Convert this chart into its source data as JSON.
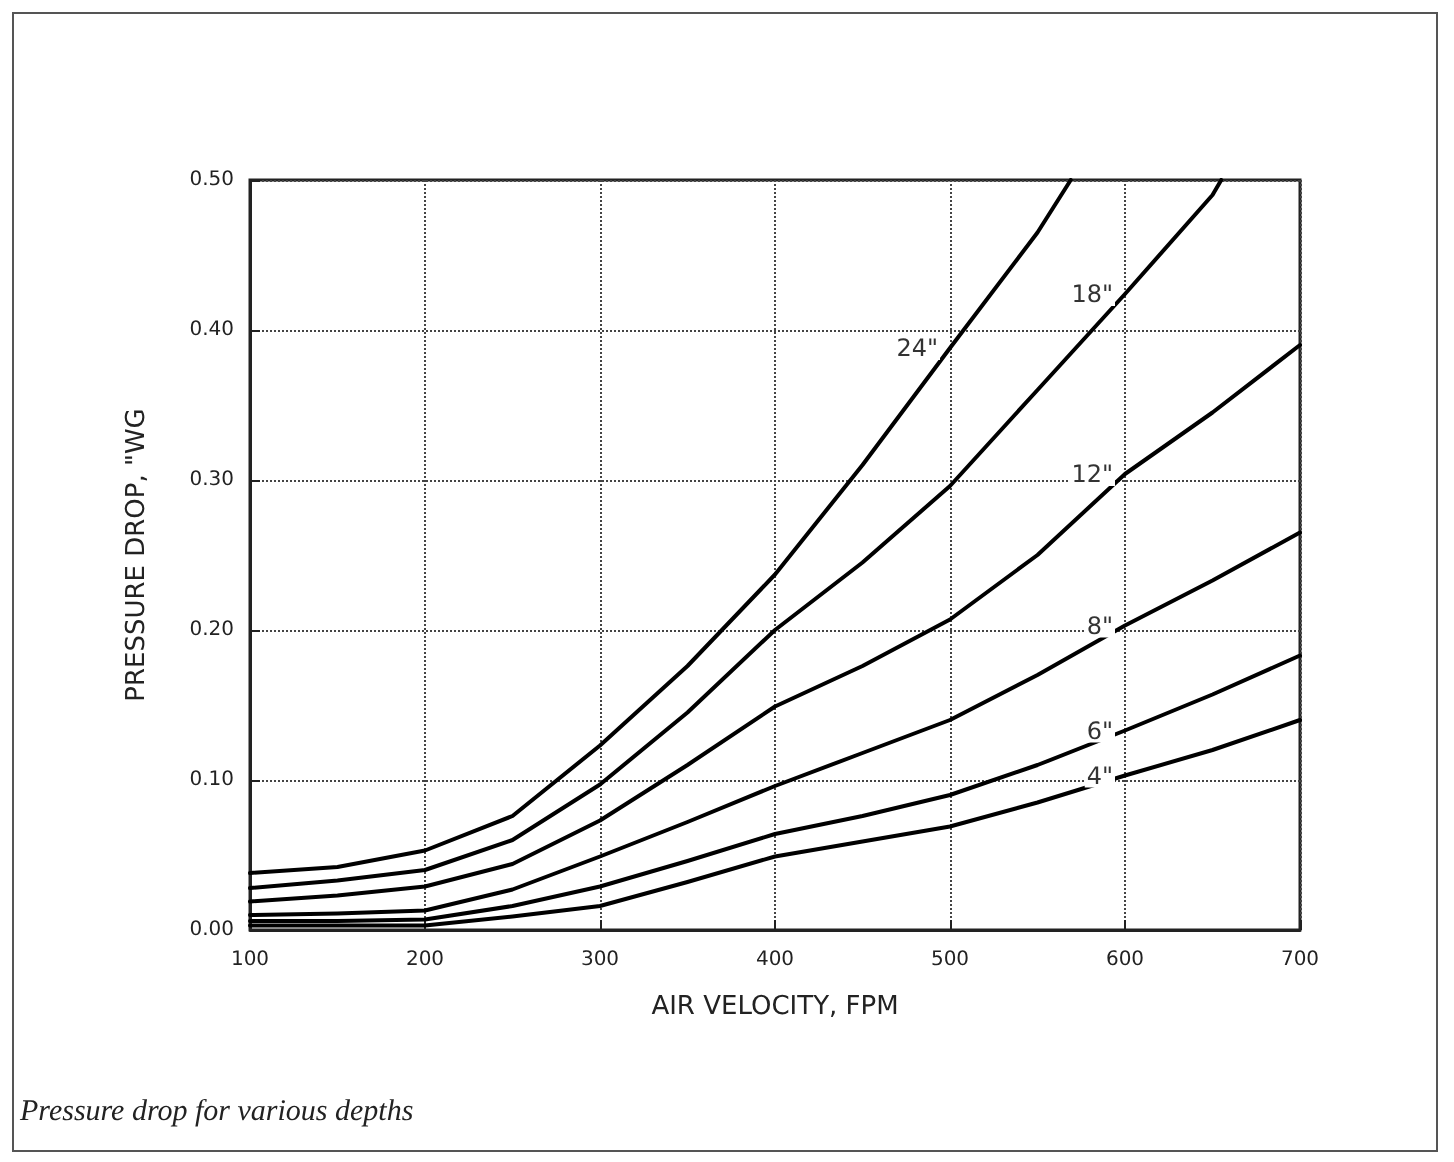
{
  "chart_data": {
    "type": "line",
    "xlabel": "AIR VELOCITY, FPM",
    "ylabel": "PRESSURE DROP, \"WG",
    "x": [
      100,
      150,
      200,
      250,
      300,
      350,
      400,
      450,
      500,
      550,
      600,
      650,
      700
    ],
    "series": [
      {
        "name": "24\"",
        "color": "#000000",
        "x": [
          100,
          150,
          200,
          250,
          300,
          350,
          400,
          450,
          500,
          550,
          569
        ],
        "values": [
          0.038,
          0.042,
          0.053,
          0.076,
          0.123,
          0.176,
          0.237,
          0.31,
          0.388,
          0.465,
          0.5
        ]
      },
      {
        "name": "18\"",
        "color": "#000000",
        "x": [
          100,
          150,
          200,
          250,
          300,
          350,
          400,
          450,
          500,
          550,
          600,
          650,
          655
        ],
        "values": [
          0.028,
          0.033,
          0.04,
          0.06,
          0.097,
          0.145,
          0.2,
          0.245,
          0.296,
          0.36,
          0.424,
          0.49,
          0.5
        ]
      },
      {
        "name": "12\"",
        "color": "#000000",
        "values": [
          0.019,
          0.023,
          0.029,
          0.044,
          0.073,
          0.11,
          0.149,
          0.176,
          0.207,
          0.25,
          0.304,
          0.345,
          0.39
        ]
      },
      {
        "name": "8\"",
        "color": "#000000",
        "values": [
          0.01,
          0.011,
          0.013,
          0.027,
          0.049,
          0.072,
          0.096,
          0.118,
          0.14,
          0.17,
          0.203,
          0.233,
          0.265
        ]
      },
      {
        "name": "6\"",
        "color": "#000000",
        "values": [
          0.006,
          0.006,
          0.007,
          0.016,
          0.029,
          0.046,
          0.064,
          0.076,
          0.09,
          0.11,
          0.133,
          0.157,
          0.183
        ]
      },
      {
        "name": "4\"",
        "color": "#000000",
        "values": [
          0.003,
          0.003,
          0.003,
          0.009,
          0.016,
          0.032,
          0.049,
          0.059,
          0.069,
          0.085,
          0.103,
          0.12,
          0.14
        ]
      }
    ],
    "annotations": [
      "Pressure drop for various depths"
    ],
    "xlim": [
      100,
      700
    ],
    "xticks": [
      100,
      200,
      300,
      400,
      500,
      600,
      700
    ],
    "ylim": [
      0,
      0.5
    ],
    "yticks": [
      {
        "value": 0,
        "label": "0.00"
      },
      {
        "value": 0.1,
        "label": "0.10"
      },
      {
        "value": 0.2,
        "label": "0.20"
      },
      {
        "value": 0.3,
        "label": "0.30"
      },
      {
        "value": 0.4,
        "label": "0.40"
      },
      {
        "value": 0.5,
        "label": "0.50"
      }
    ],
    "grid": true,
    "marker": "none",
    "line_style": "solid"
  }
}
